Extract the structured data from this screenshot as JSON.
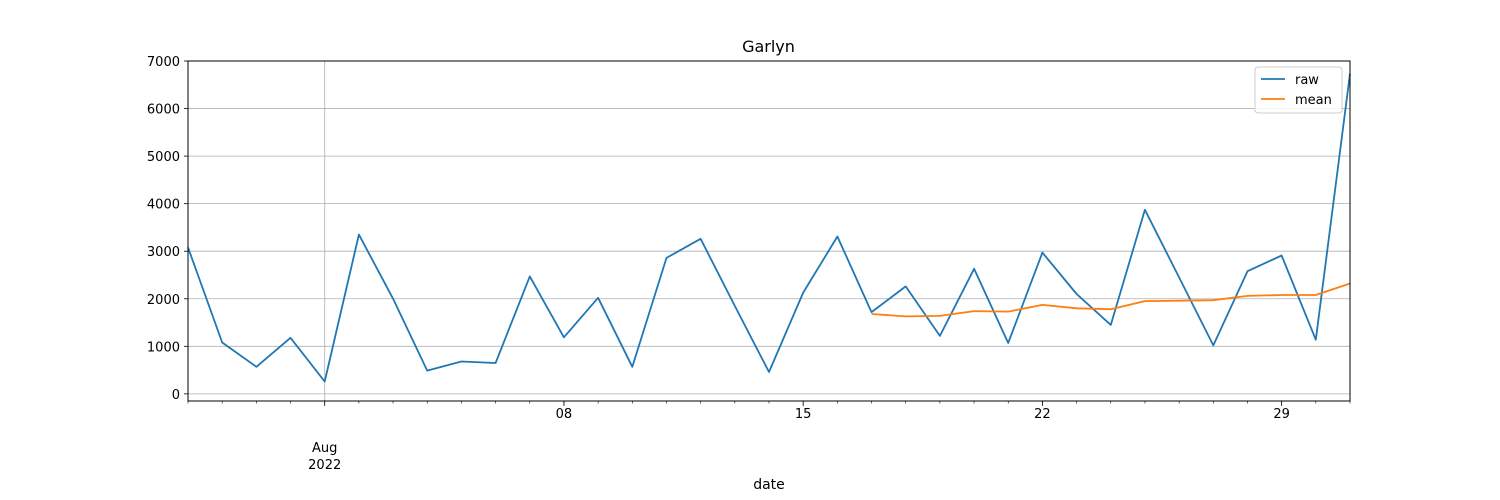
{
  "chart_data": {
    "type": "line",
    "title": "Garlyn",
    "xlabel": "date",
    "ylabel": "",
    "ylim": [
      -150,
      7000
    ],
    "xlim": [
      "2022-07-28",
      "2022-08-31"
    ],
    "y_ticks": [
      0,
      1000,
      2000,
      3000,
      4000,
      5000,
      6000,
      7000
    ],
    "y_tick_labels": [
      "0",
      "1000",
      "2000",
      "3000",
      "4000",
      "5000",
      "6000",
      "7000"
    ],
    "x_major_ticks": [
      {
        "date": "2022-08-01",
        "label": "Aug",
        "label2": "2022"
      },
      {
        "date": "2022-08-08",
        "label": "08",
        "label2": ""
      },
      {
        "date": "2022-08-15",
        "label": "15",
        "label2": ""
      },
      {
        "date": "2022-08-22",
        "label": "22",
        "label2": ""
      },
      {
        "date": "2022-08-29",
        "label": "29",
        "label2": ""
      }
    ],
    "vertical_gridline_date": "2022-08-01",
    "grid": "horizontal",
    "legend_position": "top-right",
    "series": [
      {
        "name": "raw",
        "color": "#1f77b4",
        "x": [
          "2022-07-28",
          "2022-07-29",
          "2022-07-30",
          "2022-07-31",
          "2022-08-01",
          "2022-08-02",
          "2022-08-03",
          "2022-08-04",
          "2022-08-05",
          "2022-08-06",
          "2022-08-07",
          "2022-08-08",
          "2022-08-09",
          "2022-08-10",
          "2022-08-11",
          "2022-08-12",
          "2022-08-13",
          "2022-08-14",
          "2022-08-15",
          "2022-08-16",
          "2022-08-17",
          "2022-08-18",
          "2022-08-19",
          "2022-08-20",
          "2022-08-21",
          "2022-08-22",
          "2022-08-23",
          "2022-08-24",
          "2022-08-25",
          "2022-08-26",
          "2022-08-27",
          "2022-08-28",
          "2022-08-29",
          "2022-08-30",
          "2022-08-31"
        ],
        "values": [
          3080,
          1080,
          570,
          1180,
          260,
          3350,
          2000,
          490,
          680,
          650,
          2470,
          1190,
          2020,
          570,
          2860,
          3260,
          1850,
          460,
          2130,
          3310,
          1720,
          2260,
          1220,
          2630,
          1070,
          2970,
          2100,
          1450,
          3870,
          2450,
          1020,
          2580,
          2910,
          1140,
          6730
        ]
      },
      {
        "name": "mean",
        "color": "#ff7f0e",
        "x": [
          "2022-08-17",
          "2022-08-18",
          "2022-08-19",
          "2022-08-20",
          "2022-08-21",
          "2022-08-22",
          "2022-08-23",
          "2022-08-24",
          "2022-08-25",
          "2022-08-26",
          "2022-08-27",
          "2022-08-28",
          "2022-08-29",
          "2022-08-30",
          "2022-08-31"
        ],
        "values": [
          1680,
          1630,
          1640,
          1740,
          1730,
          1870,
          1800,
          1780,
          1950,
          1960,
          1970,
          2060,
          2080,
          2080,
          2320
        ]
      }
    ]
  }
}
